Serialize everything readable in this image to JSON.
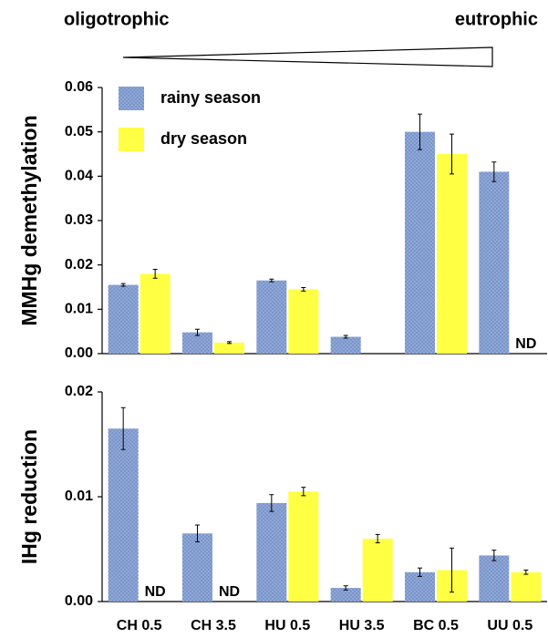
{
  "header": {
    "left": "oligotrophic",
    "right": "eutrophic"
  },
  "chart_data": [
    {
      "type": "bar",
      "ylabel": "MMHg demethylation",
      "ylim": [
        0,
        0.06
      ],
      "yticks": [
        {
          "value": 0,
          "label": "0.00"
        },
        0.01,
        0.02,
        0.03,
        0.04,
        0.05,
        0.06
      ],
      "legend": "upper left",
      "series": [
        {
          "name": "rainy season",
          "color": "#8fa8d8",
          "values": [
            0.0155,
            0.0048,
            0.0165,
            0.0038,
            0.05,
            0.041
          ],
          "errors": [
            0.0003,
            0.0007,
            0.0003,
            0.0003,
            0.004,
            0.0022
          ]
        },
        {
          "name": "dry season",
          "color": "#ffff44",
          "values": [
            0.018,
            0.0025,
            0.0145,
            null,
            0.045,
            null
          ],
          "errors": [
            0.001,
            0.0002,
            0.0004,
            null,
            0.0045,
            null
          ],
          "value_labels": [
            null,
            null,
            null,
            null,
            null,
            "ND"
          ]
        }
      ]
    },
    {
      "type": "bar",
      "ylabel": "IHg reduction",
      "ylim": [
        0,
        0.02
      ],
      "yticks": [
        {
          "value": 0,
          "label": "0.00"
        },
        0.01,
        0.02
      ],
      "categories": [
        "CH 0.5",
        "CH 3.5",
        "HU 0.5",
        "HU 3.5",
        "BC 0.5",
        "UU 0.5"
      ],
      "series": [
        {
          "name": "rainy season",
          "color": "#8fa8d8",
          "values": [
            0.0165,
            0.0065,
            0.0094,
            0.0013,
            0.0028,
            0.0044
          ],
          "errors": [
            0.002,
            0.0008,
            0.0008,
            0.0002,
            0.0004,
            0.0005
          ]
        },
        {
          "name": "dry season",
          "color": "#ffff44",
          "values": [
            null,
            null,
            0.0105,
            0.006,
            0.003,
            0.0028
          ],
          "errors": [
            null,
            null,
            0.0004,
            0.0004,
            0.0021,
            0.0002
          ],
          "value_labels": [
            "ND",
            "ND",
            null,
            null,
            null,
            null
          ]
        }
      ]
    }
  ]
}
